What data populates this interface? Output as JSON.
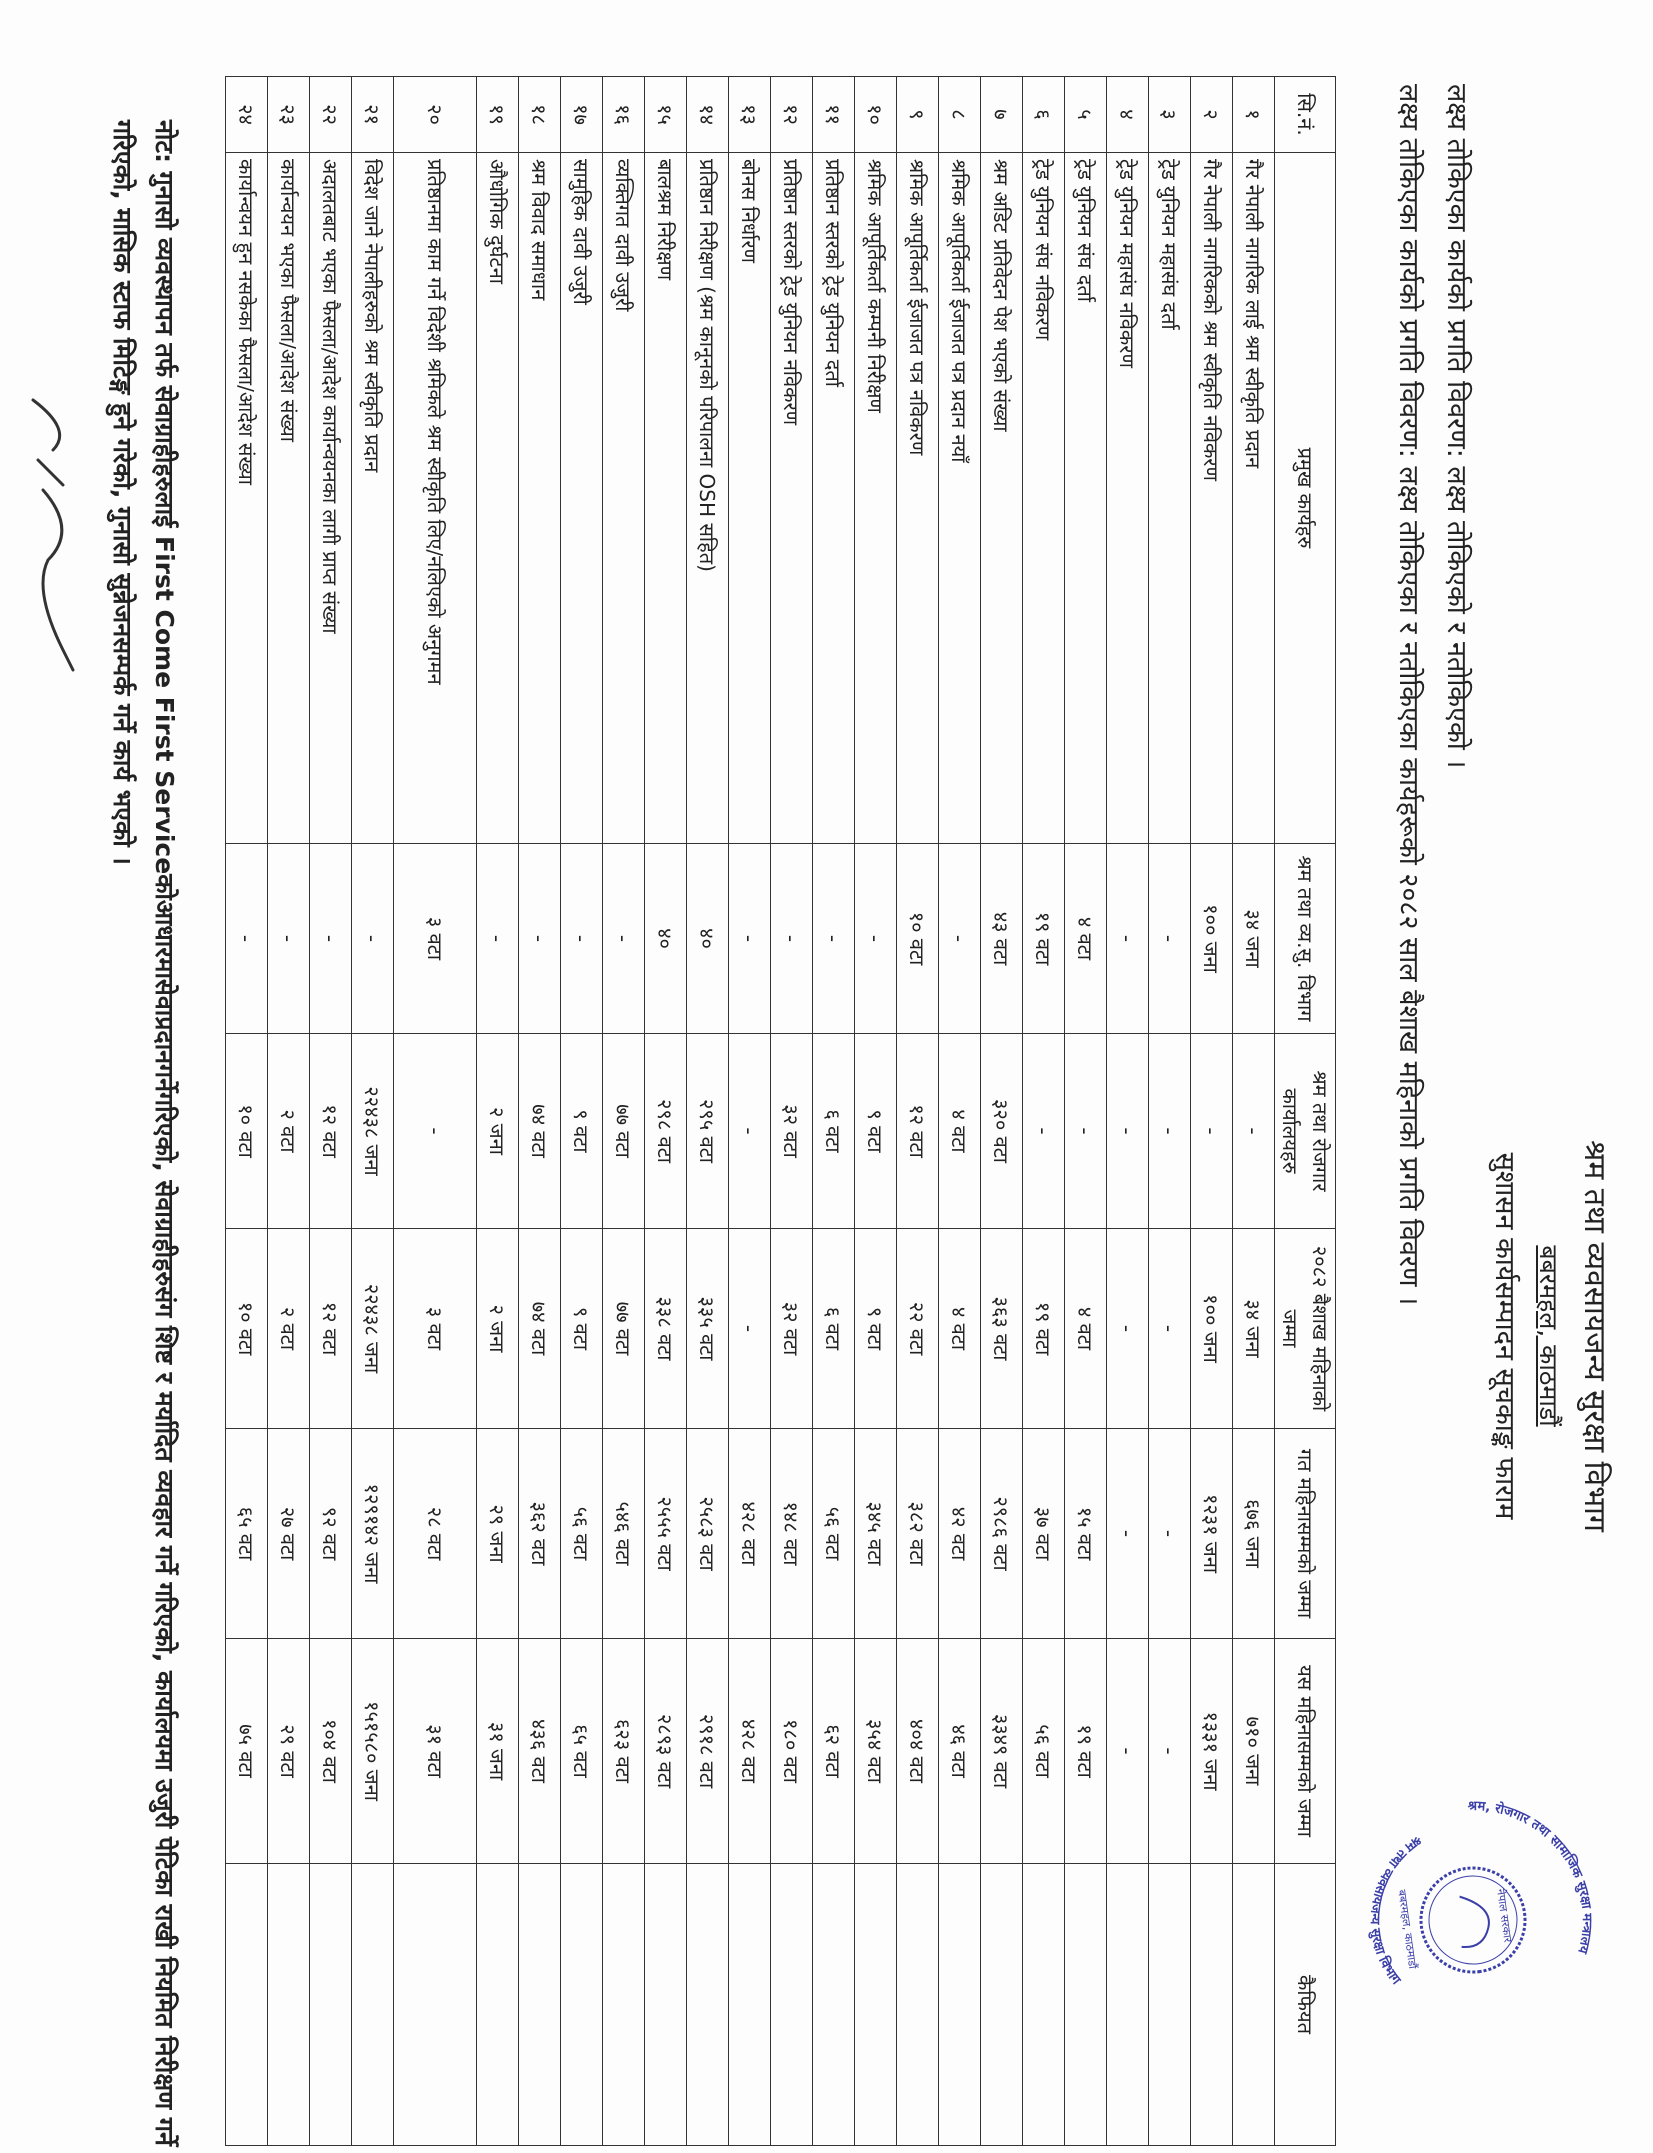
{
  "header": {
    "department": "श्रम तथा व्यवसायजन्य सुरक्षा विभाग",
    "address": "बबरमहल, काठमाडौं",
    "form_title": "सुशासन कार्यसम्पादन सूचकाङ्क फाराम",
    "subtitle1": "लक्ष्य तोकिएका कार्यको प्रगति विवरण: लक्ष्य तोकिएको र नतोकिएको ।",
    "subtitle2": "लक्ष्य तोकिएका कार्यको प्रगति विवरण: लक्ष्य तोकिएका र नतोकिएका कार्यहरूको २०८२ साल बैशाख महिनाको प्रगति विवरण ।"
  },
  "table": {
    "columns": [
      "सि.नं.",
      "प्रमुख कार्यहरु",
      "श्रम तथा व्य.सु. विभाग",
      "श्रम तथा रोजगार कार्यालयहरु",
      "२०८२ बैशाख महिनाको जम्मा",
      "गत महिनासम्मको जम्मा",
      "यस महिनासम्मको जम्मा",
      "कैफियत"
    ],
    "rows": [
      [
        "१",
        "गैर नेपाली नागरिक लाई श्रम स्वीकृति प्रदान",
        "३४ जना",
        "-",
        "३४ जना",
        "६७६ जना",
        "७१० जना",
        ""
      ],
      [
        "२",
        "गैर नेपाली नागरिकको श्रम स्वीकृति नविकरण",
        "१०० जना",
        "-",
        "१०० जना",
        "१२३१ जना",
        "१३३१ जना",
        ""
      ],
      [
        "३",
        "ट्रेड युनियन महासंघ दर्ता",
        "-",
        "-",
        "-",
        "-",
        "-",
        ""
      ],
      [
        "४",
        "ट्रेड युनियन महासंघ नविकरण",
        "-",
        "-",
        "-",
        "-",
        "-",
        ""
      ],
      [
        "५",
        "ट्रेड युनियन संघ दर्ता",
        "४ वटा",
        "-",
        "४ वटा",
        "१५ वटा",
        "१९ वटा",
        ""
      ],
      [
        "६",
        "ट्रेड युनियन संघ नविकरण",
        "१९ वटा",
        "-",
        "१९ वटा",
        "३७ वटा",
        "५६ वटा",
        ""
      ],
      [
        "७",
        "श्रम अडिट प्रतिवेदन पेश भएको संख्या",
        "४३ वटा",
        "३२० वटा",
        "३६३ वटा",
        "२९८६ वटा",
        "३३४९ वटा",
        ""
      ],
      [
        "८",
        "श्रमिक आपूर्तिकर्ता ईजाजत पत्र प्रदान नयाँ",
        "-",
        "४ वटा",
        "४ वटा",
        "४२ वटा",
        "४६ वटा",
        ""
      ],
      [
        "९",
        "श्रमिक आपूर्तिकर्ता ईजाजत पत्र नविकरण",
        "१० वटा",
        "१२ वटा",
        "२२ वटा",
        "३८२ वटा",
        "४०४ वटा",
        ""
      ],
      [
        "१०",
        "श्रमिक आपूर्तिकर्ता कम्पनी निरीक्षण",
        "-",
        "९ वटा",
        "९ वटा",
        "३४५ वटा",
        "३५४ वटा",
        ""
      ],
      [
        "११",
        "प्रतिष्ठान स्तरको ट्रेड युनियन दर्ता",
        "-",
        "६ वटा",
        "६ वटा",
        "५६ वटा",
        "६२ वटा",
        ""
      ],
      [
        "१२",
        "प्रतिष्ठान स्तरको ट्रेड युनियन  नविकरण",
        "-",
        "३२ वटा",
        "३२ वटा",
        "१४८ वटा",
        "१८० वटा",
        ""
      ],
      [
        "१३",
        "बोनस निर्धारण",
        "-",
        "-",
        "-",
        "४२८ वटा",
        "४२८ वटा",
        ""
      ],
      [
        "१४",
        "प्रतिष्ठान निरीक्षण (श्रम कानूनको परिपालना OSH सहित)",
        "४०",
        "२९५ वटा",
        "३३५ वटा",
        "२५८३ वटा",
        "२९१८ वटा",
        ""
      ],
      [
        "१५",
        "बालश्रम निरीक्षण",
        "४०",
        "२९८ वटा",
        "३३८ वटा",
        "२५५५ वटा",
        "२८९३ वटा",
        ""
      ],
      [
        "१६",
        "व्यक्तिगत दावी उजुरी",
        "-",
        "७७ वटा",
        "७७ वटा",
        "५४६ वटा",
        "६२३ वटा",
        ""
      ],
      [
        "१७",
        "सामुहिक दावी उजुरी",
        "-",
        "९ वटा",
        "९ वटा",
        "५६ वटा",
        "६५ वटा",
        ""
      ],
      [
        "१८",
        "श्रम विवाद समाधान",
        "-",
        "७४ वटा",
        "७४ वटा",
        "३६२ वटा",
        "४३६ वटा",
        ""
      ],
      [
        "१९",
        "औधोगिक दुर्घटना",
        "-",
        "२ जना",
        "२ जना",
        "२९ जना",
        "३१ जना",
        ""
      ],
      [
        "२०",
        "प्रतिष्ठानमा काम गर्ने विदेशी श्रमिकले श्रम स्वीकृति लिए/नलिएको अनुगमन",
        "३ वटा",
        "-",
        "३ वटा",
        "२८ वटा",
        "३१ वटा",
        ""
      ],
      [
        "२१",
        "विदेश जाने नेपालीहरुको श्रम स्वीकृति प्रदान",
        "-",
        "२२४३८ जना",
        "२२४३८ जना",
        "१२९१४२ जना",
        "१५१५८० जना",
        ""
      ],
      [
        "२२",
        "अदालतबाट भएका फैसला/आदेश कार्यान्वयनका लागी प्राप्त संख्या",
        "-",
        "१२ वटा",
        "१२ वटा",
        "९२ वटा",
        "१०४ वटा",
        ""
      ],
      [
        "२३",
        "कार्यान्वयन भएका फैसला/आदेश संख्या",
        "-",
        "२ वटा",
        "२ वटा",
        "२७ वटा",
        "२९ वटा",
        ""
      ],
      [
        "२४",
        "कार्यान्वयन हुन नसकेका फैसला/आदेश संख्या",
        "-",
        "१० वटा",
        "१० वटा",
        "६५ वटा",
        "७५ वटा",
        ""
      ]
    ]
  },
  "note": "नोट: गुनासो व्यवस्थापन तर्फ सेवाग्राहीहरुलाई First Come First Serviceकोआधारमासेवाप्रदानगर्नेगरिएको, सेवाग्राहीहरुसंग शिष्ट र मर्यादित व्यवहार गर्ने गरिएको, कार्यालयमा उजुरी पेटिका राखी नियमित निरीक्षण गर्ने गरिएको, मासिक स्टाफ मिटिङ्ग हुने गरेको, गुनासो सुन्नेजनसम्पर्क गर्ने कार्य भएको ।",
  "stamp": {
    "color": "#3b3fa8",
    "outer_text": "श्रम, रोजगार तथा सामाजिक सुरक्षा मन्त्रालय",
    "inner_text": "नेपाल सरकार",
    "bottom_text": "श्रम तथा व्यवसायजन्य सुरक्षा विभाग",
    "location": "बबरमहल, काठमाडौं"
  },
  "signature": {
    "color": "#333333"
  }
}
